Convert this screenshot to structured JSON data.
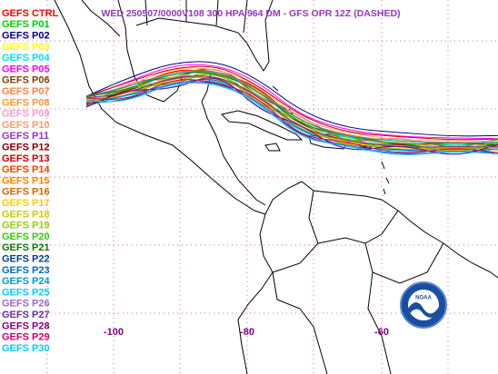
{
  "header": {
    "title": "WED 250507/0000V108  300 HPA 964 DM - GFS OPR 12Z (DASHED)"
  },
  "legend": [
    {
      "label": "GEFS CTRL",
      "color": "#ff0000"
    },
    {
      "label": "GEFS P01",
      "color": "#00cc00"
    },
    {
      "label": "GEFS P02",
      "color": "#000080"
    },
    {
      "label": "GEFS P03",
      "color": "#ffff00"
    },
    {
      "label": "GEFS P04",
      "color": "#00e5e5"
    },
    {
      "label": "GEFS P05",
      "color": "#ff00ff"
    },
    {
      "label": "GEFS P06",
      "color": "#804000"
    },
    {
      "label": "GEFS P07",
      "color": "#ff8040"
    },
    {
      "label": "GEFS P08",
      "color": "#ff9933"
    },
    {
      "label": "GEFS P09",
      "color": "#ff99cc"
    },
    {
      "label": "GEFS P10",
      "color": "#ff9966"
    },
    {
      "label": "GEFS P11",
      "color": "#9933cc"
    },
    {
      "label": "GEFS P12",
      "color": "#800000"
    },
    {
      "label": "GEFS P13",
      "color": "#cc0000"
    },
    {
      "label": "GEFS P14",
      "color": "#ff4000"
    },
    {
      "label": "GEFS P15",
      "color": "#ff8000"
    },
    {
      "label": "GEFS P16",
      "color": "#cc6600"
    },
    {
      "label": "GEFS P17",
      "color": "#ffcc00"
    },
    {
      "label": "GEFS P18",
      "color": "#cccc00"
    },
    {
      "label": "GEFS P19",
      "color": "#99cc00"
    },
    {
      "label": "GEFS P20",
      "color": "#33cc00"
    },
    {
      "label": "GEFS P21",
      "color": "#008000"
    },
    {
      "label": "GEFS P22",
      "color": "#004080"
    },
    {
      "label": "GEFS P23",
      "color": "#0066cc"
    },
    {
      "label": "GEFS P24",
      "color": "#0099cc"
    },
    {
      "label": "GEFS P25",
      "color": "#00ccff"
    },
    {
      "label": "GEFS P26",
      "color": "#9966cc"
    },
    {
      "label": "GEFS P27",
      "color": "#663399"
    },
    {
      "label": "GEFS P28",
      "color": "#800080"
    },
    {
      "label": "GEFS P29",
      "color": "#cc0066"
    },
    {
      "label": "GEFS P30",
      "color": "#00ccff"
    }
  ],
  "map": {
    "lon_labels": [
      "-100",
      "-80",
      "-60"
    ],
    "logo": "NOAA"
  }
}
